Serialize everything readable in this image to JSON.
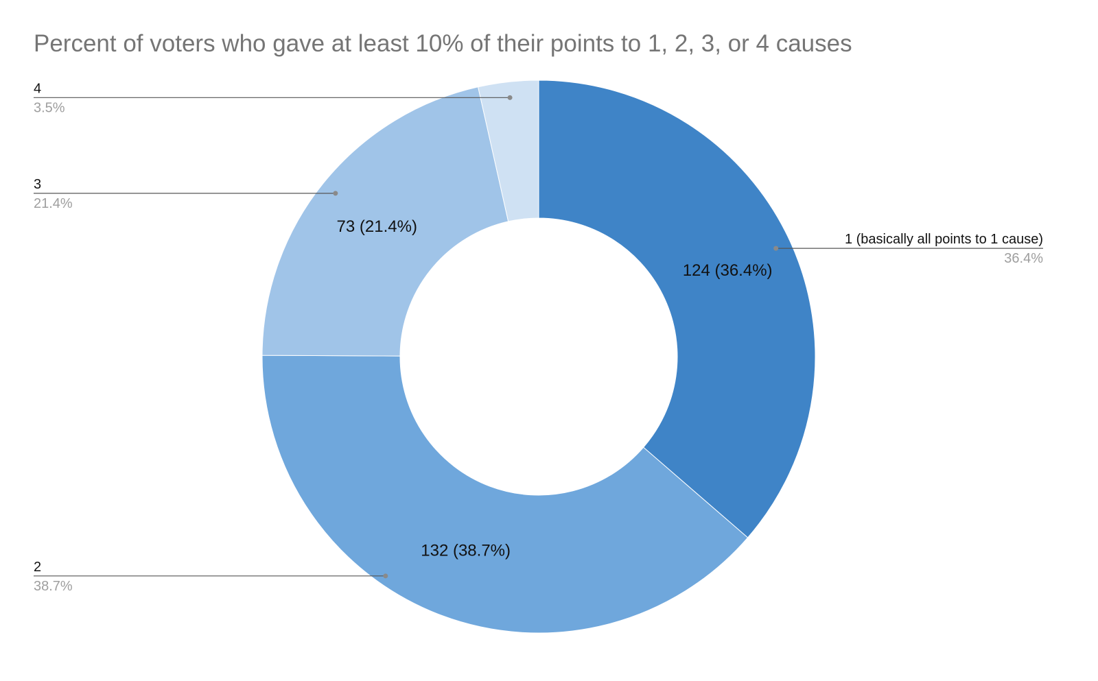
{
  "chart_data": {
    "type": "pie",
    "donut": true,
    "title": "Percent of voters who gave at least 10% of their points to 1, 2, 3, or 4 causes",
    "categories": [
      "1 (basically all points to 1 cause)",
      "2",
      "3",
      "4"
    ],
    "values": [
      124,
      132,
      73,
      12
    ],
    "slices": [
      {
        "label": "1 (basically all points to 1 cause)",
        "value": 124,
        "percent": "36.4%",
        "slice_label": "124 (36.4%)",
        "color": "#3f84c7"
      },
      {
        "label": "2",
        "value": 132,
        "percent": "38.7%",
        "slice_label": "132 (38.7%)",
        "color": "#6fa7dc"
      },
      {
        "label": "3",
        "value": 73,
        "percent": "21.4%",
        "slice_label": "73 (21.4%)",
        "color": "#a0c4e8"
      },
      {
        "label": "4",
        "value": 12,
        "percent": "3.5%",
        "slice_label": "",
        "color": "#cfe1f3"
      }
    ],
    "legend": "none",
    "labels": "leader-lines"
  }
}
